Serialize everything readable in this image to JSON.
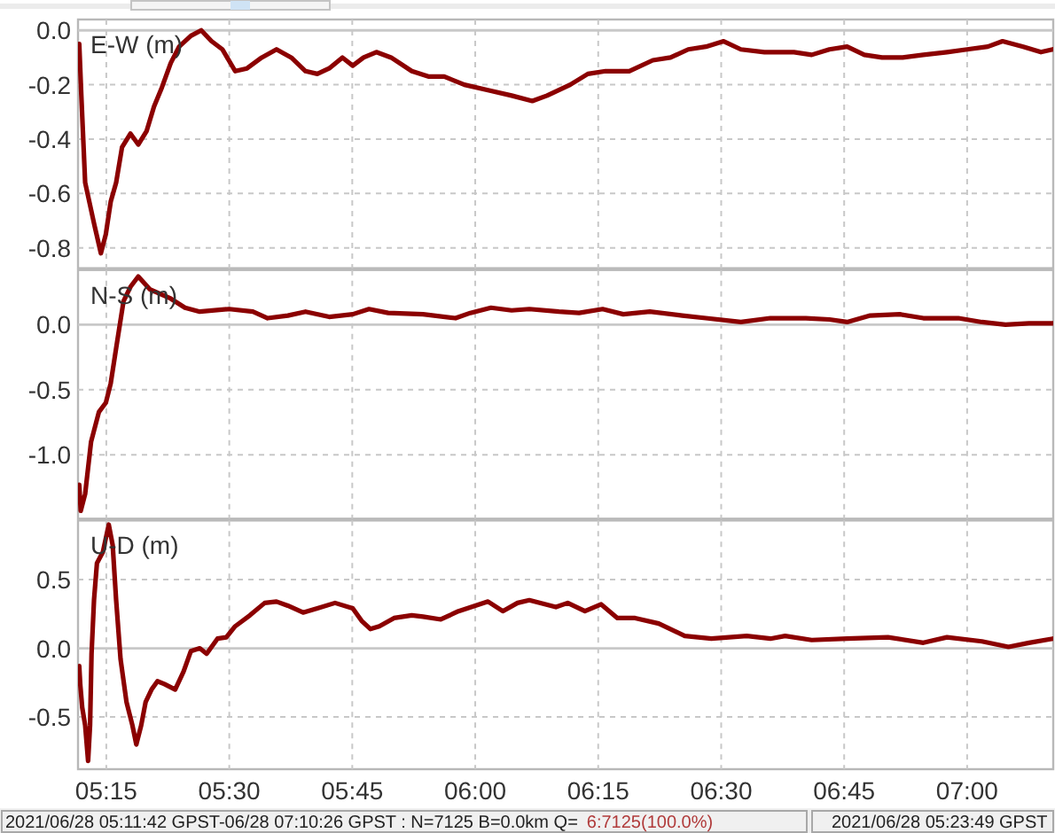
{
  "chart_data": [
    {
      "type": "line",
      "title": "E-W (m)",
      "x": [
        5.195,
        5.199,
        5.207,
        5.225,
        5.239,
        5.249,
        5.259,
        5.27,
        5.282,
        5.299,
        5.315,
        5.332,
        5.347,
        5.363,
        5.381,
        5.398,
        5.422,
        5.443,
        5.464,
        5.486,
        5.512,
        5.536,
        5.566,
        5.596,
        5.626,
        5.655,
        5.679,
        5.703,
        5.73,
        5.751,
        5.773,
        5.799,
        5.829,
        5.871,
        5.906,
        5.937,
        5.978,
        6.026,
        6.074,
        6.116,
        6.146,
        6.193,
        6.229,
        6.265,
        6.313,
        6.361,
        6.397,
        6.433,
        6.469,
        6.505,
        6.54,
        6.588,
        6.648,
        6.684,
        6.72,
        6.756,
        6.791,
        6.827,
        6.869,
        6.911,
        6.959,
        7.0,
        7.042,
        7.072,
        7.114,
        7.15,
        7.174
      ],
      "series": [
        {
          "color": "#8b0000",
          "values": [
            -0.05,
            -0.23,
            -0.56,
            -0.71,
            -0.82,
            -0.75,
            -0.63,
            -0.56,
            -0.43,
            -0.38,
            -0.42,
            -0.37,
            -0.28,
            -0.21,
            -0.12,
            -0.06,
            -0.02,
            0.0,
            -0.04,
            -0.07,
            -0.15,
            -0.14,
            -0.1,
            -0.07,
            -0.1,
            -0.15,
            -0.16,
            -0.14,
            -0.1,
            -0.13,
            -0.1,
            -0.08,
            -0.1,
            -0.15,
            -0.17,
            -0.17,
            -0.2,
            -0.22,
            -0.24,
            -0.26,
            -0.24,
            -0.2,
            -0.16,
            -0.15,
            -0.15,
            -0.11,
            -0.1,
            -0.07,
            -0.06,
            -0.04,
            -0.07,
            -0.08,
            -0.08,
            -0.09,
            -0.07,
            -0.06,
            -0.09,
            -0.1,
            -0.1,
            -0.09,
            -0.08,
            -0.07,
            -0.06,
            -0.04,
            -0.06,
            -0.08,
            -0.07
          ]
        }
      ],
      "xlim": [
        5.1925,
        7.175
      ],
      "xticks": [
        5.25,
        5.5,
        5.75,
        6,
        6.25,
        6.5,
        6.75,
        7
      ],
      "ylim": [
        -0.875,
        0.04
      ],
      "yticks": [
        {
          "value": 0,
          "label": "0.0"
        },
        {
          "value": -0.2,
          "label": "-0.2"
        },
        {
          "value": -0.4,
          "label": "-0.4"
        },
        {
          "value": -0.6,
          "label": "-0.6"
        },
        {
          "value": -0.8,
          "label": "-0.8"
        }
      ],
      "grid": true,
      "tick_labels": "y"
    },
    {
      "type": "line",
      "title": "N-S (m)",
      "x": [
        5.195,
        5.198,
        5.207,
        5.219,
        5.235,
        5.249,
        5.259,
        5.27,
        5.285,
        5.299,
        5.315,
        5.339,
        5.381,
        5.41,
        5.44,
        5.5,
        5.548,
        5.578,
        5.619,
        5.655,
        5.703,
        5.751,
        5.784,
        5.823,
        5.894,
        5.96,
        5.99,
        6.032,
        6.074,
        6.11,
        6.17,
        6.211,
        6.259,
        6.301,
        6.355,
        6.421,
        6.469,
        6.54,
        6.6,
        6.672,
        6.72,
        6.756,
        6.803,
        6.863,
        6.911,
        6.982,
        7.03,
        7.078,
        7.126,
        7.174
      ],
      "series": [
        {
          "color": "#8b0000",
          "values": [
            -1.23,
            -1.43,
            -1.3,
            -0.9,
            -0.67,
            -0.6,
            -0.45,
            -0.18,
            0.18,
            0.29,
            0.37,
            0.27,
            0.2,
            0.13,
            0.1,
            0.12,
            0.1,
            0.05,
            0.07,
            0.1,
            0.06,
            0.08,
            0.12,
            0.09,
            0.08,
            0.05,
            0.09,
            0.13,
            0.11,
            0.12,
            0.1,
            0.09,
            0.12,
            0.08,
            0.1,
            0.07,
            0.05,
            0.02,
            0.05,
            0.05,
            0.04,
            0.02,
            0.07,
            0.08,
            0.05,
            0.05,
            0.02,
            0.0,
            0.01,
            0.01
          ]
        }
      ],
      "xlim": [
        5.1925,
        7.175
      ],
      "xticks": [
        5.25,
        5.5,
        5.75,
        6,
        6.25,
        6.5,
        6.75,
        7
      ],
      "ylim": [
        -1.49,
        0.42
      ],
      "yticks": [
        {
          "value": 0,
          "label": "0.0"
        },
        {
          "value": -0.5,
          "label": "-0.5"
        },
        {
          "value": -1,
          "label": "-1.0"
        }
      ],
      "grid": true,
      "tick_labels": "y"
    },
    {
      "type": "line",
      "title": "U-D (m)",
      "x": [
        5.195,
        5.197,
        5.201,
        5.207,
        5.213,
        5.217,
        5.22,
        5.225,
        5.231,
        5.243,
        5.255,
        5.263,
        5.27,
        5.279,
        5.291,
        5.303,
        5.311,
        5.321,
        5.33,
        5.342,
        5.354,
        5.368,
        5.39,
        5.407,
        5.422,
        5.44,
        5.454,
        5.476,
        5.494,
        5.512,
        5.542,
        5.572,
        5.596,
        5.619,
        5.65,
        5.679,
        5.715,
        5.751,
        5.769,
        5.787,
        5.805,
        5.835,
        5.871,
        5.894,
        5.93,
        5.966,
        6.026,
        6.056,
        6.086,
        6.11,
        6.164,
        6.188,
        6.223,
        6.256,
        6.289,
        6.325,
        6.373,
        6.426,
        6.48,
        6.552,
        6.6,
        6.63,
        6.684,
        6.756,
        6.839,
        6.911,
        6.959,
        7.03,
        7.084,
        7.126,
        7.174
      ],
      "series": [
        {
          "color": "#8b0000",
          "values": [
            -0.13,
            -0.26,
            -0.43,
            -0.56,
            -0.82,
            -0.56,
            -0.04,
            0.35,
            0.62,
            0.7,
            0.9,
            0.75,
            0.35,
            -0.08,
            -0.39,
            -0.56,
            -0.7,
            -0.56,
            -0.39,
            -0.3,
            -0.24,
            -0.26,
            -0.3,
            -0.17,
            -0.02,
            0.0,
            -0.04,
            0.07,
            0.08,
            0.16,
            0.24,
            0.33,
            0.34,
            0.31,
            0.26,
            0.29,
            0.33,
            0.29,
            0.2,
            0.14,
            0.16,
            0.22,
            0.24,
            0.23,
            0.21,
            0.27,
            0.34,
            0.27,
            0.33,
            0.35,
            0.3,
            0.33,
            0.27,
            0.32,
            0.22,
            0.22,
            0.18,
            0.09,
            0.07,
            0.09,
            0.07,
            0.09,
            0.06,
            0.07,
            0.08,
            0.04,
            0.08,
            0.05,
            0.01,
            0.04,
            0.07
          ]
        }
      ],
      "xlim": [
        5.1925,
        7.175
      ],
      "xticks": [
        {
          "value": 5.25,
          "label": "05:15"
        },
        {
          "value": 5.5,
          "label": "05:30"
        },
        {
          "value": 5.75,
          "label": "05:45"
        },
        {
          "value": 6,
          "label": "06:00"
        },
        {
          "value": 6.25,
          "label": "06:15"
        },
        {
          "value": 6.5,
          "label": "06:30"
        },
        {
          "value": 6.75,
          "label": "06:45"
        },
        {
          "value": 7,
          "label": "07:00"
        }
      ],
      "ylim": [
        -0.88,
        0.93
      ],
      "yticks": [
        {
          "value": 0.5,
          "label": "0.5"
        },
        {
          "value": 0,
          "label": "0.0"
        },
        {
          "value": -0.5,
          "label": "-0.5"
        }
      ],
      "grid": true,
      "annotations": [
        "2021/06/28 05:11:42 GPST-06/28 07:10:26 GPST : N=7125 B=0.0km Q=",
        "6:7125(100.0%)",
        "2021/06/28 05:23:49 GPST"
      ]
    }
  ]
}
